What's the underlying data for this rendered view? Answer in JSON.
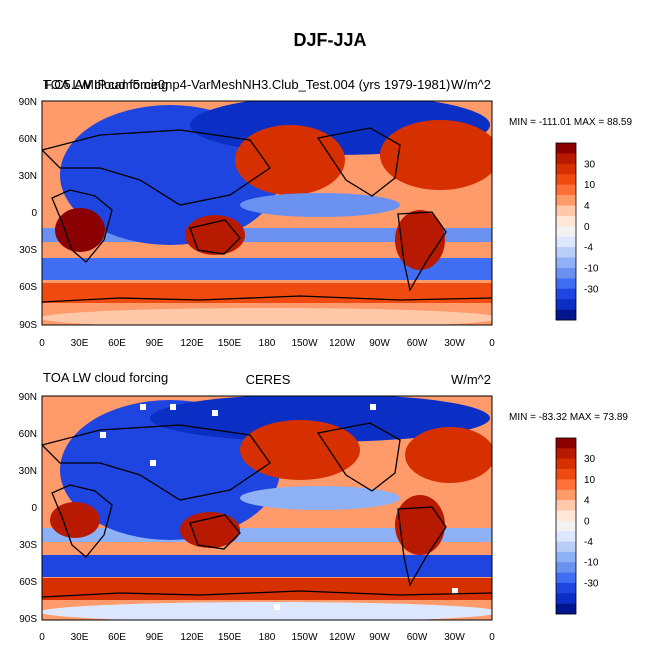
{
  "page": {
    "title": "DJF-JJA"
  },
  "chart_data": [
    {
      "type": "heatmap",
      "title_left": "TOA LW cloud forcing",
      "title_overlap": "F.C5.AMIP.cam5.ne0np4-VarMeshNH3.Club_Test.004 (yrs 1979-1981)",
      "title_center": "",
      "units": "W/m^2",
      "stats": "MIN = -111.01 MAX =  88.59",
      "x_range": [
        0,
        360
      ],
      "y_range": [
        -90,
        90
      ],
      "x_ticks": [
        "0",
        "30E",
        "60E",
        "90E",
        "120E",
        "150E",
        "180",
        "150W",
        "120W",
        "90W",
        "60W",
        "30W",
        "0"
      ],
      "y_ticks": [
        "90N",
        "60N",
        "30N",
        "0",
        "30S",
        "60S",
        "90S"
      ]
    },
    {
      "type": "heatmap",
      "title_left": "TOA LW cloud forcing",
      "title_overlap": "",
      "title_center": "CERES",
      "units": "W/m^2",
      "stats": "MIN = -83.32 MAX =  73.89",
      "x_range": [
        0,
        360
      ],
      "y_range": [
        -90,
        90
      ],
      "x_ticks": [
        "0",
        "30E",
        "60E",
        "90E",
        "120E",
        "150E",
        "180",
        "150W",
        "120W",
        "90W",
        "60W",
        "30W",
        "0"
      ],
      "y_ticks": [
        "90N",
        "60N",
        "30N",
        "0",
        "30S",
        "60S",
        "90S"
      ]
    }
  ],
  "colorbar": {
    "labels": [
      "30",
      "10",
      "4",
      "0",
      "-4",
      "-10",
      "-30"
    ],
    "colors": [
      "#8b0000",
      "#b71a00",
      "#d73000",
      "#ef4a10",
      "#ff6f3a",
      "#ff9a6a",
      "#ffc8a8",
      "#ffe6d6",
      "#f2f2f2",
      "#dde7ff",
      "#b9cdf6",
      "#8eb1f5",
      "#6a90f0",
      "#3f6ef2",
      "#1f45e0",
      "#0b2fc4",
      "#00158e"
    ]
  },
  "colors": {
    "land_outline": "#000000",
    "white_gap": "#ffffff"
  }
}
